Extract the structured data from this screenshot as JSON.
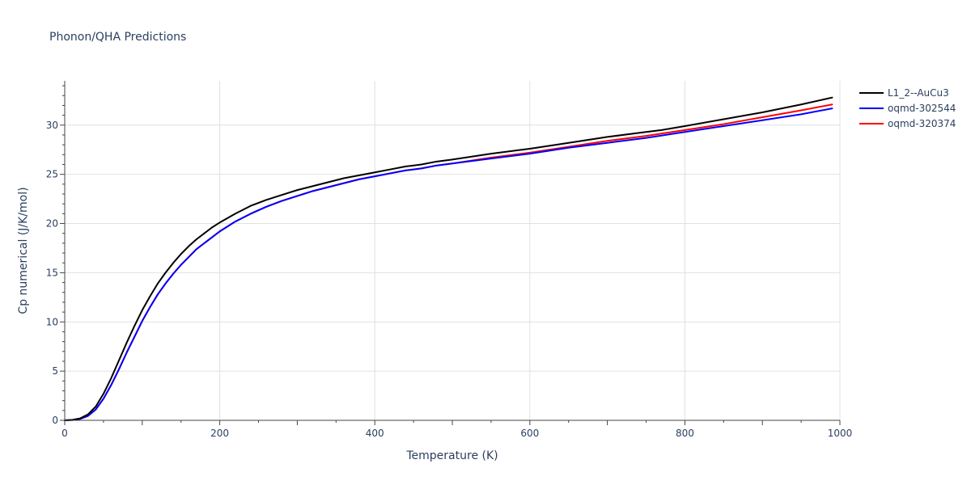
{
  "chart_data": {
    "type": "line",
    "title": "Phonon/QHA Predictions",
    "xlabel": "Temperature (K)",
    "ylabel": "Cp numerical (J/K/mol)",
    "xlim": [
      0,
      1000
    ],
    "ylim": [
      0,
      34.5
    ],
    "xticks": [
      0,
      200,
      400,
      600,
      800,
      1000
    ],
    "yticks": [
      0,
      5,
      10,
      15,
      20,
      25,
      30
    ],
    "grid": true,
    "legend_position": "top-right, outside plot",
    "series": [
      {
        "name": "L1_2--AuCu3",
        "color": "#000000",
        "x": [
          0,
          10,
          20,
          30,
          40,
          50,
          60,
          70,
          80,
          90,
          100,
          110,
          120,
          130,
          140,
          150,
          160,
          170,
          180,
          190,
          200,
          220,
          240,
          260,
          280,
          300,
          320,
          340,
          360,
          380,
          400,
          420,
          440,
          460,
          480,
          500,
          550,
          600,
          650,
          700,
          750,
          770,
          800,
          850,
          900,
          950,
          990
        ],
        "y": [
          0,
          0.05,
          0.2,
          0.6,
          1.4,
          2.7,
          4.3,
          6.1,
          7.9,
          9.6,
          11.2,
          12.6,
          13.9,
          15.0,
          16.0,
          16.9,
          17.7,
          18.4,
          19.0,
          19.6,
          20.1,
          21.0,
          21.8,
          22.4,
          22.9,
          23.4,
          23.8,
          24.2,
          24.6,
          24.9,
          25.2,
          25.5,
          25.8,
          26.0,
          26.3,
          26.5,
          27.1,
          27.6,
          28.2,
          28.8,
          29.3,
          29.5,
          29.9,
          30.6,
          31.3,
          32.1,
          32.8
        ]
      },
      {
        "name": "oqmd-302544",
        "color": "#0000ff",
        "x": [
          0,
          10,
          20,
          30,
          40,
          50,
          60,
          70,
          80,
          90,
          100,
          110,
          120,
          130,
          140,
          150,
          160,
          170,
          180,
          190,
          200,
          220,
          240,
          260,
          280,
          300,
          320,
          340,
          360,
          380,
          400,
          420,
          440,
          460,
          480,
          500,
          550,
          600,
          650,
          700,
          750,
          800,
          850,
          900,
          950,
          990
        ],
        "y": [
          0,
          0.03,
          0.15,
          0.45,
          1.1,
          2.2,
          3.6,
          5.2,
          6.9,
          8.5,
          10.1,
          11.5,
          12.8,
          13.9,
          14.9,
          15.8,
          16.6,
          17.4,
          18.0,
          18.6,
          19.2,
          20.2,
          21.0,
          21.7,
          22.3,
          22.8,
          23.3,
          23.7,
          24.1,
          24.5,
          24.8,
          25.1,
          25.4,
          25.6,
          25.9,
          26.1,
          26.6,
          27.1,
          27.7,
          28.2,
          28.7,
          29.3,
          29.9,
          30.5,
          31.1,
          31.7
        ]
      },
      {
        "name": "oqmd-320374",
        "color": "#ff0000",
        "x": [
          0,
          10,
          20,
          30,
          40,
          50,
          60,
          70,
          80,
          90,
          100,
          110,
          120,
          130,
          140,
          150,
          160,
          170,
          180,
          190,
          200,
          220,
          240,
          260,
          280,
          300,
          320,
          340,
          360,
          380,
          400,
          420,
          440,
          460,
          480,
          500,
          550,
          600,
          650,
          700,
          750,
          800,
          850,
          900,
          950,
          990
        ],
        "y": [
          0,
          0.03,
          0.15,
          0.45,
          1.1,
          2.2,
          3.6,
          5.2,
          6.9,
          8.5,
          10.1,
          11.5,
          12.8,
          13.9,
          14.9,
          15.8,
          16.6,
          17.4,
          18.0,
          18.6,
          19.2,
          20.2,
          21.0,
          21.7,
          22.3,
          22.8,
          23.3,
          23.7,
          24.1,
          24.5,
          24.8,
          25.1,
          25.4,
          25.6,
          25.9,
          26.1,
          26.7,
          27.2,
          27.8,
          28.4,
          28.9,
          29.5,
          30.1,
          30.8,
          31.5,
          32.1
        ]
      }
    ]
  }
}
